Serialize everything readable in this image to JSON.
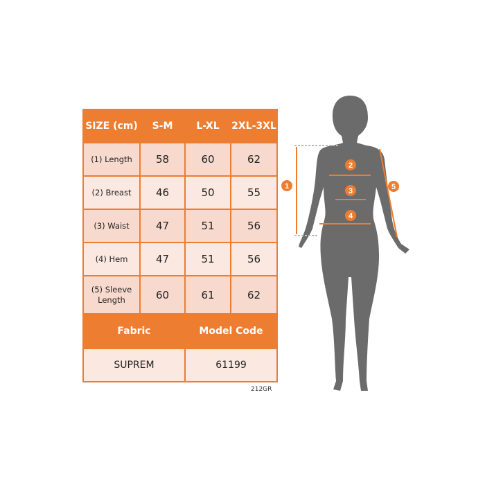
{
  "size_chart": {
    "header": [
      "SIZE (cm)",
      "S-M",
      "L-XL",
      "2XL-3XL"
    ],
    "rows": [
      {
        "label": "(1) Length",
        "values": [
          "58",
          "60",
          "62"
        ]
      },
      {
        "label": "(2) Breast",
        "values": [
          "46",
          "50",
          "55"
        ]
      },
      {
        "label": "(3) Waist",
        "values": [
          "47",
          "51",
          "56"
        ]
      },
      {
        "label": "(4) Hem",
        "values": [
          "47",
          "51",
          "56"
        ]
      },
      {
        "label": "(5) Sleeve Length",
        "values": [
          "60",
          "61",
          "62"
        ]
      }
    ],
    "fabric_label": "Fabric",
    "model_code_label": "Model Code",
    "fabric": "SUPREM",
    "model_code": "61199"
  },
  "product_code": "212GR",
  "figure": {
    "markers": [
      "1",
      "2",
      "3",
      "4",
      "5"
    ]
  },
  "colors": {
    "accent": "#ed7d31",
    "silhouette": "#6b6b6b"
  }
}
